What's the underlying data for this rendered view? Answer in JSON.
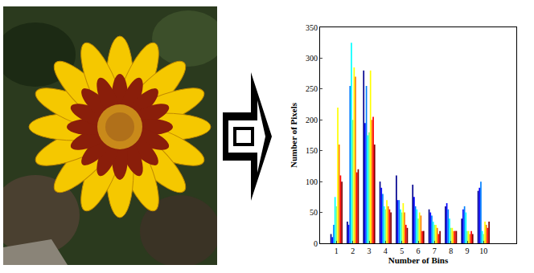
{
  "chart_data": {
    "type": "bar",
    "x_label": "Number of Bins",
    "y_label": "Number of Pixels",
    "x": [
      1,
      2,
      3,
      4,
      5,
      6,
      7,
      8,
      9,
      10
    ],
    "series": [
      {
        "color": "#00008f",
        "values": [
          15,
          35,
          280,
          100,
          110,
          95,
          55,
          60,
          40,
          85
        ]
      },
      {
        "color": "#0000ff",
        "values": [
          10,
          30,
          195,
          90,
          70,
          75,
          50,
          65,
          55,
          90
        ]
      },
      {
        "color": "#0080ff",
        "values": [
          30,
          255,
          255,
          80,
          70,
          60,
          45,
          55,
          60,
          100
        ]
      },
      {
        "color": "#00ffff",
        "values": [
          75,
          325,
          175,
          60,
          55,
          55,
          35,
          40,
          50,
          20
        ]
      },
      {
        "color": "#80ff80",
        "values": [
          60,
          200,
          180,
          55,
          50,
          40,
          30,
          25,
          20,
          15
        ]
      },
      {
        "color": "#ffff00",
        "values": [
          220,
          285,
          280,
          70,
          65,
          50,
          30,
          25,
          20,
          35
        ]
      },
      {
        "color": "#ff8000",
        "values": [
          160,
          270,
          200,
          60,
          50,
          45,
          25,
          20,
          15,
          30
        ]
      },
      {
        "color": "#ff0000",
        "values": [
          110,
          115,
          205,
          55,
          30,
          20,
          15,
          20,
          20,
          25
        ]
      },
      {
        "color": "#800000",
        "values": [
          100,
          120,
          160,
          50,
          25,
          20,
          20,
          20,
          15,
          35
        ]
      }
    ],
    "xlim": [
      0,
      12
    ],
    "xticks": [
      1,
      2,
      3,
      4,
      5,
      6,
      7,
      8,
      9,
      10
    ],
    "ylim": [
      0,
      350
    ],
    "yticks": [
      0,
      50,
      100,
      150,
      200,
      250,
      300,
      350
    ],
    "grid": false
  }
}
